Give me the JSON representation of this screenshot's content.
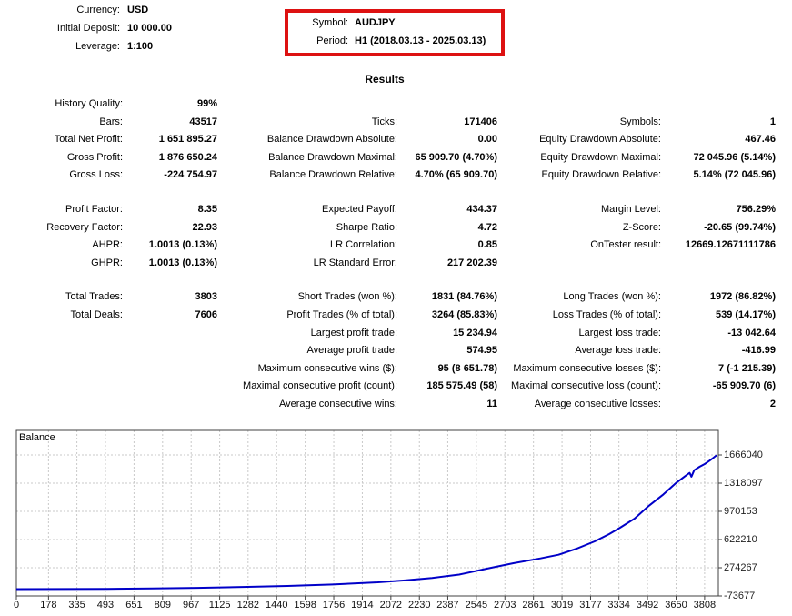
{
  "header": {
    "currency_label": "Currency:",
    "currency": "USD",
    "initial_deposit_label": "Initial Deposit:",
    "initial_deposit": "10 000.00",
    "leverage_label": "Leverage:",
    "leverage": "1:100",
    "symbol_label": "Symbol:",
    "symbol": "AUDJPY",
    "period_label": "Period:",
    "period": "H1 (2018.03.13 - 2025.03.13)",
    "highlight_color": "#dd1111"
  },
  "results_title": "Results",
  "stats": {
    "sections": [
      {
        "rows": [
          {
            "c1": {
              "label": "History Quality:",
              "value": "99%"
            },
            "c2": null,
            "c3": null
          },
          {
            "c1": {
              "label": "Bars:",
              "value": "43517"
            },
            "c2": {
              "label": "Ticks:",
              "value": "171406"
            },
            "c3": {
              "label": "Symbols:",
              "value": "1"
            }
          },
          {
            "c1": {
              "label": "Total Net Profit:",
              "value": "1 651 895.27"
            },
            "c2": {
              "label": "Balance Drawdown Absolute:",
              "value": "0.00"
            },
            "c3": {
              "label": "Equity Drawdown Absolute:",
              "value": "467.46"
            }
          },
          {
            "c1": {
              "label": "Gross Profit:",
              "value": "1 876 650.24"
            },
            "c2": {
              "label": "Balance Drawdown Maximal:",
              "value": "65 909.70 (4.70%)"
            },
            "c3": {
              "label": "Equity Drawdown Maximal:",
              "value": "72 045.96 (5.14%)"
            }
          },
          {
            "c1": {
              "label": "Gross Loss:",
              "value": "-224 754.97"
            },
            "c2": {
              "label": "Balance Drawdown Relative:",
              "value": "4.70% (65 909.70)"
            },
            "c3": {
              "label": "Equity Drawdown Relative:",
              "value": "5.14% (72 045.96)"
            }
          }
        ]
      },
      {
        "rows": [
          {
            "c1": {
              "label": "Profit Factor:",
              "value": "8.35"
            },
            "c2": {
              "label": "Expected Payoff:",
              "value": "434.37"
            },
            "c3": {
              "label": "Margin Level:",
              "value": "756.29%"
            }
          },
          {
            "c1": {
              "label": "Recovery Factor:",
              "value": "22.93"
            },
            "c2": {
              "label": "Sharpe Ratio:",
              "value": "4.72"
            },
            "c3": {
              "label": "Z-Score:",
              "value": "-20.65 (99.74%)"
            }
          },
          {
            "c1": {
              "label": "AHPR:",
              "value": "1.0013 (0.13%)"
            },
            "c2": {
              "label": "LR Correlation:",
              "value": "0.85"
            },
            "c3": {
              "label": "OnTester result:",
              "value": "12669.12671111786"
            }
          },
          {
            "c1": {
              "label": "GHPR:",
              "value": "1.0013 (0.13%)"
            },
            "c2": {
              "label": "LR Standard Error:",
              "value": "217 202.39"
            },
            "c3": null
          }
        ]
      },
      {
        "rows": [
          {
            "c1": {
              "label": "Total Trades:",
              "value": "3803"
            },
            "c2": {
              "label": "Short Trades (won %):",
              "value": "1831 (84.76%)"
            },
            "c3": {
              "label": "Long Trades (won %):",
              "value": "1972 (86.82%)"
            }
          },
          {
            "c1": {
              "label": "Total Deals:",
              "value": "7606"
            },
            "c2": {
              "label": "Profit Trades (% of total):",
              "value": "3264 (85.83%)"
            },
            "c3": {
              "label": "Loss Trades (% of total):",
              "value": "539 (14.17%)"
            }
          },
          {
            "c1": null,
            "c2": {
              "label": "Largest profit trade:",
              "value": "15 234.94"
            },
            "c3": {
              "label": "Largest loss trade:",
              "value": "-13 042.64"
            }
          },
          {
            "c1": null,
            "c2": {
              "label": "Average profit trade:",
              "value": "574.95"
            },
            "c3": {
              "label": "Average loss trade:",
              "value": "-416.99"
            }
          },
          {
            "c1": null,
            "c2": {
              "label": "Maximum consecutive wins ($):",
              "value": "95 (8 651.78)"
            },
            "c3": {
              "label": "Maximum consecutive losses ($):",
              "value": "7 (-1 215.39)"
            }
          },
          {
            "c1": null,
            "c2": {
              "label": "Maximal consecutive profit (count):",
              "value": "185 575.49 (58)"
            },
            "c3": {
              "label": "Maximal consecutive loss (count):",
              "value": "-65 909.70 (6)"
            }
          },
          {
            "c1": null,
            "c2": {
              "label": "Average consecutive wins:",
              "value": "11"
            },
            "c3": {
              "label": "Average consecutive losses:",
              "value": "2"
            }
          }
        ]
      }
    ]
  },
  "chart_data": {
    "type": "line",
    "title": "Balance",
    "legend_position": "top-left",
    "grid": "dashed",
    "line_color": "#0000C8",
    "grid_color": "#c9c9c9",
    "border_color": "#404040",
    "x_range": [
      0,
      3884
    ],
    "x_ticks": [
      0,
      178,
      335,
      493,
      651,
      809,
      967,
      1125,
      1282,
      1440,
      1598,
      1756,
      1914,
      2072,
      2230,
      2387,
      2545,
      2703,
      2861,
      3019,
      3177,
      3334,
      3492,
      3650,
      3808
    ],
    "y_ticks": [
      1666040,
      1318097,
      970153,
      622210,
      274267,
      -73677
    ],
    "series": [
      {
        "name": "Balance",
        "points": [
          [
            0,
            10000
          ],
          [
            250,
            11500
          ],
          [
            500,
            14000
          ],
          [
            750,
            18500
          ],
          [
            1000,
            26500
          ],
          [
            1250,
            37000
          ],
          [
            1500,
            50000
          ],
          [
            1750,
            68000
          ],
          [
            2000,
            95000
          ],
          [
            2150,
            118000
          ],
          [
            2300,
            148000
          ],
          [
            2450,
            190000
          ],
          [
            2600,
            262000
          ],
          [
            2750,
            330000
          ],
          [
            2900,
            390000
          ],
          [
            3000,
            435000
          ],
          [
            3100,
            510000
          ],
          [
            3200,
            600000
          ],
          [
            3280,
            690000
          ],
          [
            3340,
            768000
          ],
          [
            3420,
            880000
          ],
          [
            3500,
            1040000
          ],
          [
            3580,
            1180000
          ],
          [
            3650,
            1320000
          ],
          [
            3700,
            1405000
          ],
          [
            3725,
            1445000
          ],
          [
            3735,
            1398000
          ],
          [
            3750,
            1478000
          ],
          [
            3780,
            1520000
          ],
          [
            3808,
            1554000
          ],
          [
            3835,
            1595000
          ],
          [
            3855,
            1628000
          ],
          [
            3870,
            1655000
          ],
          [
            3878,
            1661895
          ]
        ]
      }
    ]
  }
}
